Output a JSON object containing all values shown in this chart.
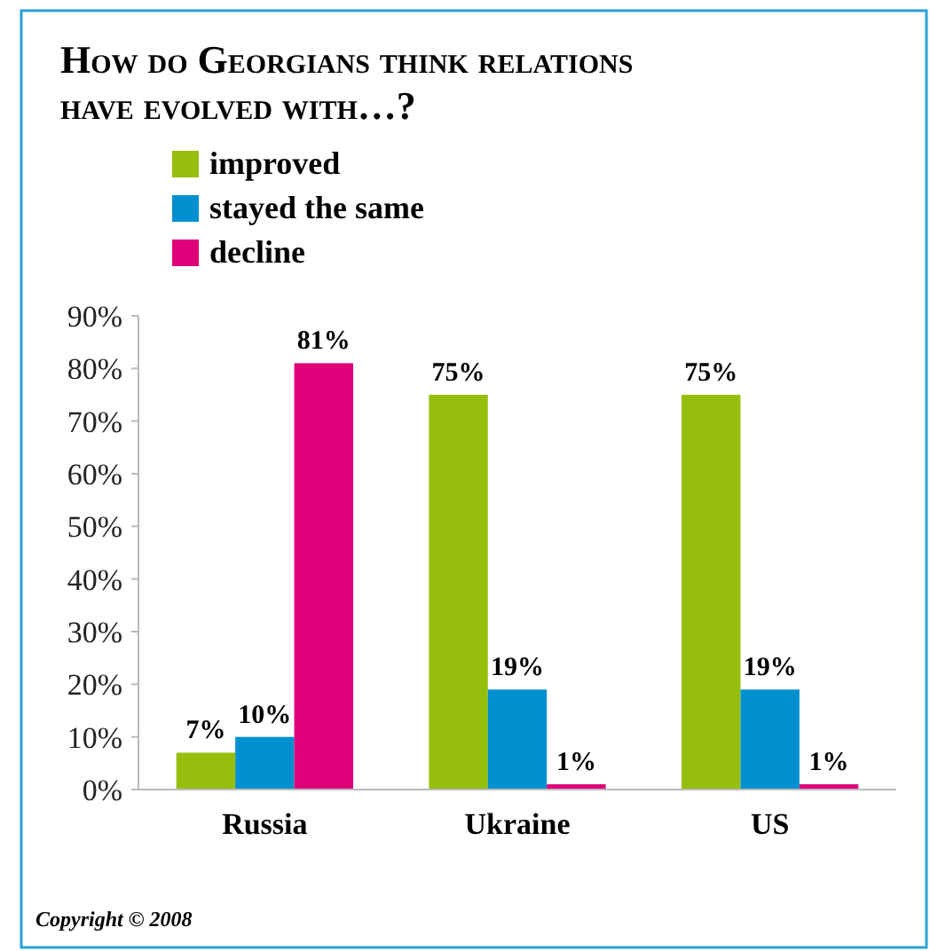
{
  "chart_data": {
    "type": "bar",
    "title": "How do Georgians think relations have evolved with…?",
    "categories": [
      "Russia",
      "Ukraine",
      "US"
    ],
    "series": [
      {
        "name": "improved",
        "color": "#96bf0d",
        "values": [
          7,
          75,
          75
        ]
      },
      {
        "name": "stayed the same",
        "color": "#0090d0",
        "values": [
          10,
          19,
          19
        ]
      },
      {
        "name": "decline",
        "color": "#e0007a",
        "values": [
          81,
          1,
          1
        ]
      }
    ],
    "ylim": [
      0,
      90
    ],
    "yticks": [
      {
        "value": 0,
        "label": "0%"
      },
      {
        "value": 10,
        "label": "10%"
      },
      {
        "value": 20,
        "label": "20%"
      },
      {
        "value": 30,
        "label": "30%"
      },
      {
        "value": 40,
        "label": "40%"
      },
      {
        "value": 50,
        "label": "50%"
      },
      {
        "value": 60,
        "label": "60%"
      },
      {
        "value": 70,
        "label": "70%"
      },
      {
        "value": 80,
        "label": "80%"
      },
      {
        "value": 90,
        "label": "90%"
      }
    ],
    "value_labels": [
      [
        "7%",
        "75%",
        "75%"
      ],
      [
        "10%",
        "19%",
        "19%"
      ],
      [
        "81%",
        "1%",
        "1%"
      ]
    ],
    "legend": "top left",
    "grid": false,
    "annotations": [
      "Copyright © 2008"
    ]
  }
}
